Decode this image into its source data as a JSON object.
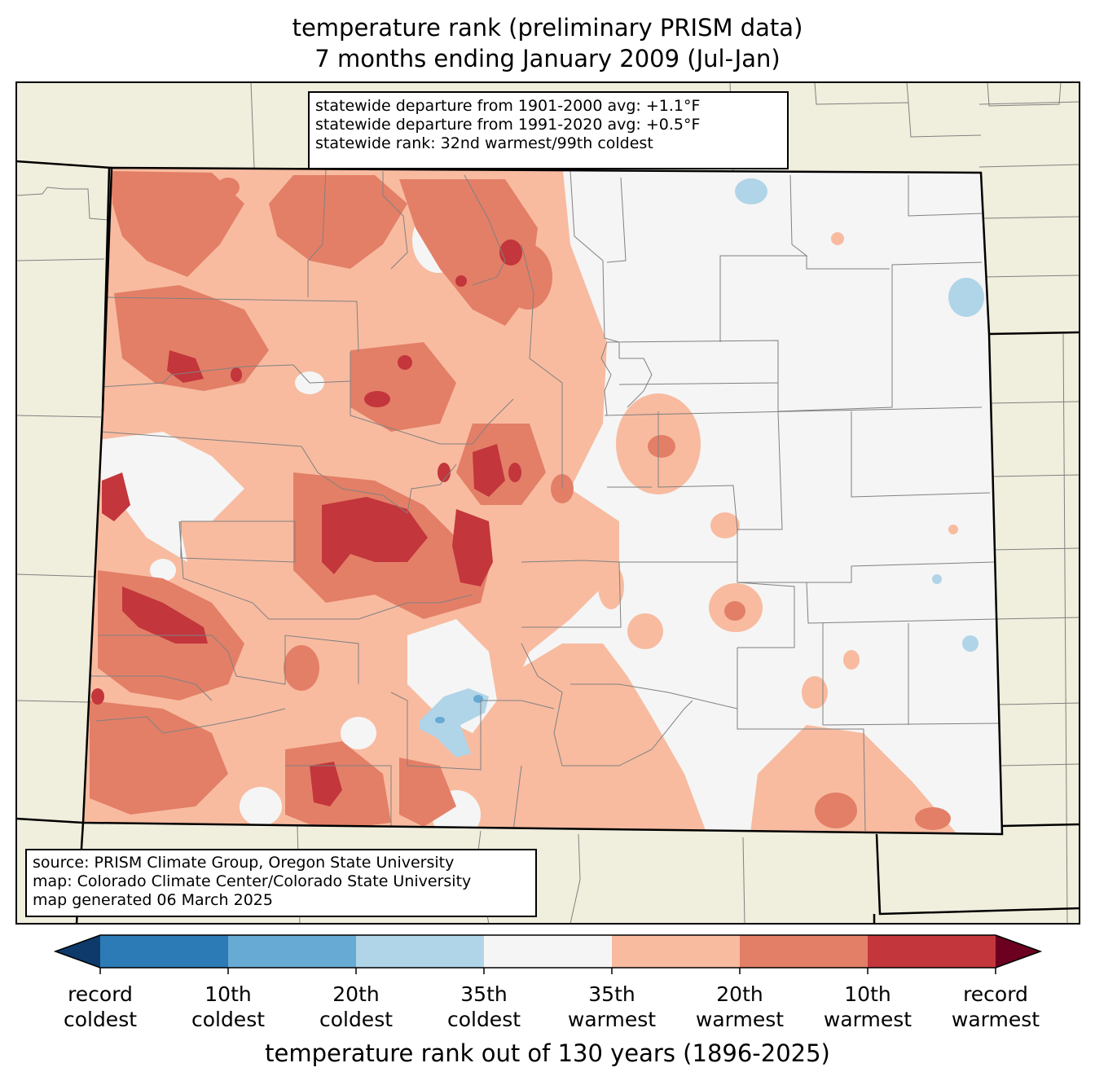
{
  "title": {
    "line1": "temperature rank (preliminary PRISM data)",
    "line2": "7 months ending January 2009 (Jul-Jan)"
  },
  "stats": {
    "line1": "statewide departure from 1901-2000 avg: +1.1°F",
    "line2": "statewide departure from 1991-2020 avg: +0.5°F",
    "line3": "statewide rank: 32nd warmest/99th coldest"
  },
  "credits": {
    "line1": "source: PRISM Climate Group, Oregon State University",
    "line2": "map: Colorado Climate Center/Colorado State University",
    "line3": "map generated 06 March 2025"
  },
  "colors": {
    "background_land": "#f0eedc",
    "neutral": "#f5f5f5",
    "state_border": "#000000",
    "county_border": "#808080"
  },
  "colorbar": {
    "label": "temperature rank out of 130 years (1896-2025)",
    "colors": [
      "#2c7bb6",
      "#67aad3",
      "#b0d4e8",
      "#f5f5f5",
      "#f8bba0",
      "#e37f67",
      "#c3363c"
    ],
    "extend_low_color": "#0d3a6b",
    "extend_high_color": "#6b0020",
    "ticks": [
      {
        "line1": "record",
        "line2": "coldest"
      },
      {
        "line1": "10th",
        "line2": "coldest"
      },
      {
        "line1": "20th",
        "line2": "coldest"
      },
      {
        "line1": "35th",
        "line2": "coldest"
      },
      {
        "line1": "35th",
        "line2": "warmest"
      },
      {
        "line1": "20th",
        "line2": "warmest"
      },
      {
        "line1": "10th",
        "line2": "warmest"
      },
      {
        "line1": "record",
        "line2": "warmest"
      }
    ]
  }
}
